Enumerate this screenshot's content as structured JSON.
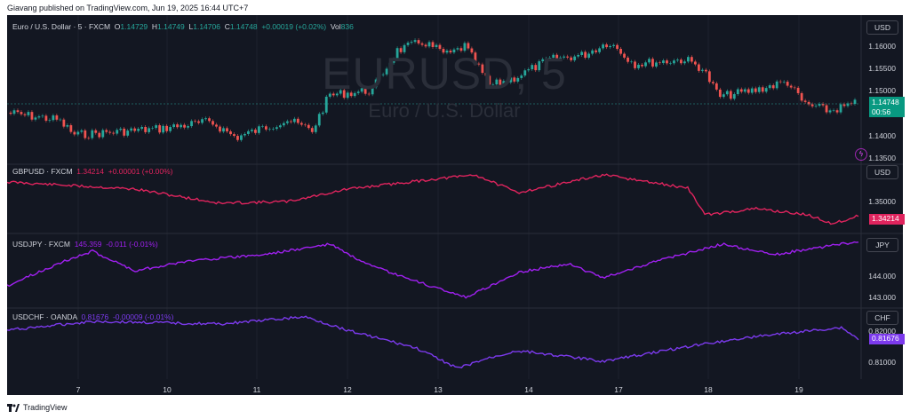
{
  "header": {
    "caption": "Giavang published on TradingView.com, Jun 19, 2025 16:44 UTC+7"
  },
  "watermark": {
    "symbol": "EURUSD, 5",
    "name": "Euro / U.S. Dollar"
  },
  "panes": [
    {
      "id": "eurusd",
      "legend": {
        "title": "Euro / U.S. Dollar · 5 · FXCM",
        "o_label": "O",
        "o": "1.14729",
        "h_label": "H",
        "h": "1.14749",
        "l_label": "L",
        "l": "1.14706",
        "c_label": "C",
        "c": "1.14748",
        "chg": "+0.00019 (+0.02%)",
        "vol_label": "Vol",
        "vol": "836"
      },
      "currency": "USD",
      "price_label": "1.14748",
      "countdown": "00:56",
      "yticks": [
        "1.16000",
        "1.15500",
        "1.15000",
        "1.14000",
        "1.13500"
      ],
      "color": "#26a69a"
    },
    {
      "id": "gbpusd",
      "legend": {
        "title": "GBPUSD · FXCM",
        "value": "1.34214",
        "chg": "+0.00001 (+0.00%)"
      },
      "currency": "USD",
      "price_label": "1.34214",
      "yticks": [
        "1.35000"
      ],
      "color": "#e0245e"
    },
    {
      "id": "usdjpy",
      "legend": {
        "title": "USDJPY · FXCM",
        "value": "145.359",
        "chg": "-0.011 (-0.01%)"
      },
      "currency": "JPY",
      "yticks": [
        "144.000",
        "143.000"
      ],
      "color": "#a020f0"
    },
    {
      "id": "usdchf",
      "legend": {
        "title": "USDCHF · OANDA",
        "value": "0.81676",
        "chg": "-0.00009 (-0.01%)"
      },
      "currency": "CHF",
      "price_label": "0.81676",
      "yticks": [
        "0.82000",
        "0.81000"
      ],
      "color": "#7c3aed"
    }
  ],
  "xaxis": {
    "ticks": [
      "7",
      "10",
      "11",
      "12",
      "13",
      "14",
      "17",
      "18",
      "19"
    ]
  },
  "footer": {
    "brand": "TradingView"
  },
  "colors": {
    "background": "#131722",
    "grid": "#1e222d",
    "up": "#26a69a",
    "down": "#ef5350"
  },
  "icons": {
    "compare": "lightning-circle-icon",
    "logo": "tradingview-logo-icon"
  }
}
